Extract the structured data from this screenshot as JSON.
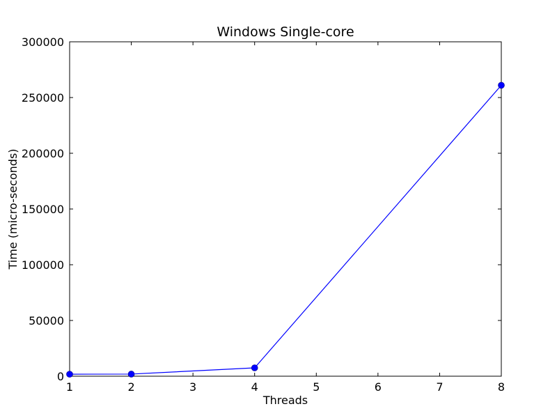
{
  "chart_data": {
    "type": "line",
    "title": "Windows Single-core",
    "xlabel": "Threads",
    "ylabel": "Time (micro-seconds)",
    "xlim": [
      1,
      8
    ],
    "ylim": [
      0,
      300000
    ],
    "xticks": [
      "1",
      "2",
      "3",
      "4",
      "5",
      "6",
      "7",
      "8"
    ],
    "yticks": [
      "0",
      "50000",
      "100000",
      "150000",
      "200000",
      "250000",
      "300000"
    ],
    "grid": false,
    "series": [
      {
        "color": "#0000ff",
        "marker": "circle",
        "x": [
          1,
          2,
          4,
          8
        ],
        "y": [
          1800,
          1900,
          7500,
          261000
        ]
      }
    ]
  }
}
